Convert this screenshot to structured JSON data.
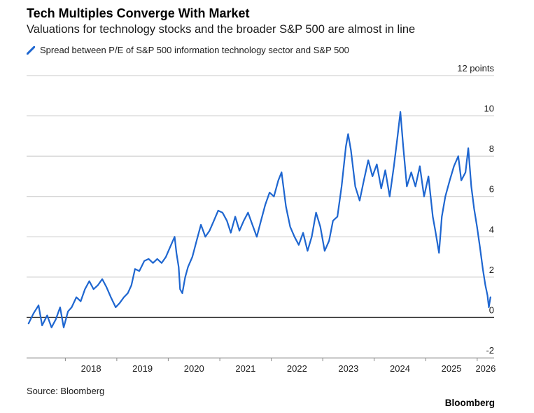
{
  "title": "Tech Multiples Converge With Market",
  "subtitle": "Valuations for technology stocks and the broader S&P 500 are almost in line",
  "source": "Source: Bloomberg",
  "brand": "Bloomberg",
  "colors": {
    "series": "#1e66d0",
    "grid": "#c8c8c8",
    "zero_line": "#333333"
  },
  "chart_data": {
    "type": "line",
    "x_axis": {
      "type": "date",
      "range": [
        "2017-04-01",
        "2026-05-01"
      ],
      "tick_labels": [
        "2018",
        "2019",
        "2020",
        "2021",
        "2022",
        "2023",
        "2024",
        "2025",
        "2026"
      ]
    },
    "y_axis": {
      "range": [
        -2,
        12
      ],
      "ticks": [
        -2,
        0,
        2,
        4,
        6,
        8,
        10,
        12
      ],
      "tick_labels": [
        "-2",
        "0",
        "2",
        "4",
        "6",
        "8",
        "10",
        "12 points"
      ],
      "position": "right"
    },
    "grid": true,
    "legend": "top-left",
    "series": [
      {
        "name": "Spread between P/E of S&P 500 information technology sector and S&P 500",
        "points": [
          [
            "2017-04-15",
            -0.3
          ],
          [
            "2017-05-20",
            0.2
          ],
          [
            "2017-06-25",
            0.6
          ],
          [
            "2017-07-20",
            -0.4
          ],
          [
            "2017-08-25",
            0.1
          ],
          [
            "2017-09-25",
            -0.5
          ],
          [
            "2017-10-25",
            -0.1
          ],
          [
            "2017-11-25",
            0.5
          ],
          [
            "2017-12-20",
            -0.5
          ],
          [
            "2018-01-20",
            0.3
          ],
          [
            "2018-02-15",
            0.5
          ],
          [
            "2018-03-20",
            1.0
          ],
          [
            "2018-04-20",
            0.8
          ],
          [
            "2018-05-20",
            1.4
          ],
          [
            "2018-06-20",
            1.8
          ],
          [
            "2018-07-20",
            1.4
          ],
          [
            "2018-08-20",
            1.6
          ],
          [
            "2018-09-20",
            1.9
          ],
          [
            "2018-10-20",
            1.5
          ],
          [
            "2018-11-20",
            1.0
          ],
          [
            "2018-12-24",
            0.5
          ],
          [
            "2019-01-20",
            0.7
          ],
          [
            "2019-02-20",
            1.0
          ],
          [
            "2019-03-20",
            1.2
          ],
          [
            "2019-04-15",
            1.6
          ],
          [
            "2019-05-10",
            2.4
          ],
          [
            "2019-06-10",
            2.3
          ],
          [
            "2019-07-15",
            2.8
          ],
          [
            "2019-08-15",
            2.9
          ],
          [
            "2019-09-15",
            2.7
          ],
          [
            "2019-10-15",
            2.9
          ],
          [
            "2019-11-15",
            2.7
          ],
          [
            "2019-12-15",
            3.0
          ],
          [
            "2020-01-15",
            3.5
          ],
          [
            "2020-02-15",
            4.0
          ],
          [
            "2020-02-28",
            3.2
          ],
          [
            "2020-03-15",
            2.5
          ],
          [
            "2020-03-25",
            1.4
          ],
          [
            "2020-04-10",
            1.2
          ],
          [
            "2020-04-30",
            2.0
          ],
          [
            "2020-05-20",
            2.5
          ],
          [
            "2020-06-20",
            3.0
          ],
          [
            "2020-07-20",
            3.8
          ],
          [
            "2020-08-20",
            4.6
          ],
          [
            "2020-09-20",
            4.0
          ],
          [
            "2020-10-20",
            4.3
          ],
          [
            "2020-11-20",
            4.8
          ],
          [
            "2020-12-20",
            5.3
          ],
          [
            "2021-01-20",
            5.2
          ],
          [
            "2021-02-20",
            4.8
          ],
          [
            "2021-03-20",
            4.2
          ],
          [
            "2021-04-20",
            5.0
          ],
          [
            "2021-05-20",
            4.3
          ],
          [
            "2021-06-20",
            4.8
          ],
          [
            "2021-07-20",
            5.2
          ],
          [
            "2021-08-20",
            4.6
          ],
          [
            "2021-09-20",
            4.0
          ],
          [
            "2021-10-20",
            4.8
          ],
          [
            "2021-11-20",
            5.6
          ],
          [
            "2021-12-20",
            6.2
          ],
          [
            "2022-01-20",
            6.0
          ],
          [
            "2022-02-20",
            6.8
          ],
          [
            "2022-03-15",
            7.2
          ],
          [
            "2022-04-15",
            5.5
          ],
          [
            "2022-05-15",
            4.5
          ],
          [
            "2022-06-15",
            4.0
          ],
          [
            "2022-07-15",
            3.6
          ],
          [
            "2022-08-15",
            4.2
          ],
          [
            "2022-09-15",
            3.3
          ],
          [
            "2022-10-15",
            4.0
          ],
          [
            "2022-11-15",
            5.2
          ],
          [
            "2022-12-15",
            4.5
          ],
          [
            "2023-01-15",
            3.3
          ],
          [
            "2023-02-15",
            3.8
          ],
          [
            "2023-03-15",
            4.8
          ],
          [
            "2023-04-15",
            5.0
          ],
          [
            "2023-05-15",
            6.5
          ],
          [
            "2023-06-15",
            8.5
          ],
          [
            "2023-06-30",
            9.1
          ],
          [
            "2023-07-20",
            8.3
          ],
          [
            "2023-08-20",
            6.5
          ],
          [
            "2023-09-20",
            5.8
          ],
          [
            "2023-10-20",
            6.8
          ],
          [
            "2023-11-20",
            7.8
          ],
          [
            "2023-12-20",
            7.0
          ],
          [
            "2024-01-20",
            7.6
          ],
          [
            "2024-02-20",
            6.4
          ],
          [
            "2024-03-20",
            7.3
          ],
          [
            "2024-04-20",
            6.0
          ],
          [
            "2024-05-20",
            7.5
          ],
          [
            "2024-06-15",
            9.0
          ],
          [
            "2024-07-05",
            10.2
          ],
          [
            "2024-07-25",
            8.5
          ],
          [
            "2024-08-20",
            6.5
          ],
          [
            "2024-09-20",
            7.2
          ],
          [
            "2024-10-20",
            6.5
          ],
          [
            "2024-11-20",
            7.5
          ],
          [
            "2024-12-20",
            6.0
          ],
          [
            "2025-01-20",
            7.0
          ],
          [
            "2025-02-20",
            5.0
          ],
          [
            "2025-03-10",
            4.3
          ],
          [
            "2025-04-05",
            3.2
          ],
          [
            "2025-04-25",
            5.0
          ],
          [
            "2025-05-20",
            6.0
          ],
          [
            "2025-06-20",
            6.8
          ],
          [
            "2025-07-20",
            7.5
          ],
          [
            "2025-08-20",
            8.0
          ],
          [
            "2025-09-10",
            6.8
          ],
          [
            "2025-10-10",
            7.2
          ],
          [
            "2025-10-30",
            8.4
          ],
          [
            "2025-11-20",
            6.5
          ],
          [
            "2025-12-10",
            5.4
          ],
          [
            "2025-12-31",
            4.5
          ],
          [
            "2026-01-20",
            3.5
          ],
          [
            "2026-02-10",
            2.4
          ],
          [
            "2026-02-28",
            1.6
          ],
          [
            "2026-03-15",
            1.1
          ],
          [
            "2026-03-25",
            0.5
          ],
          [
            "2026-04-05",
            1.0
          ]
        ]
      }
    ]
  }
}
